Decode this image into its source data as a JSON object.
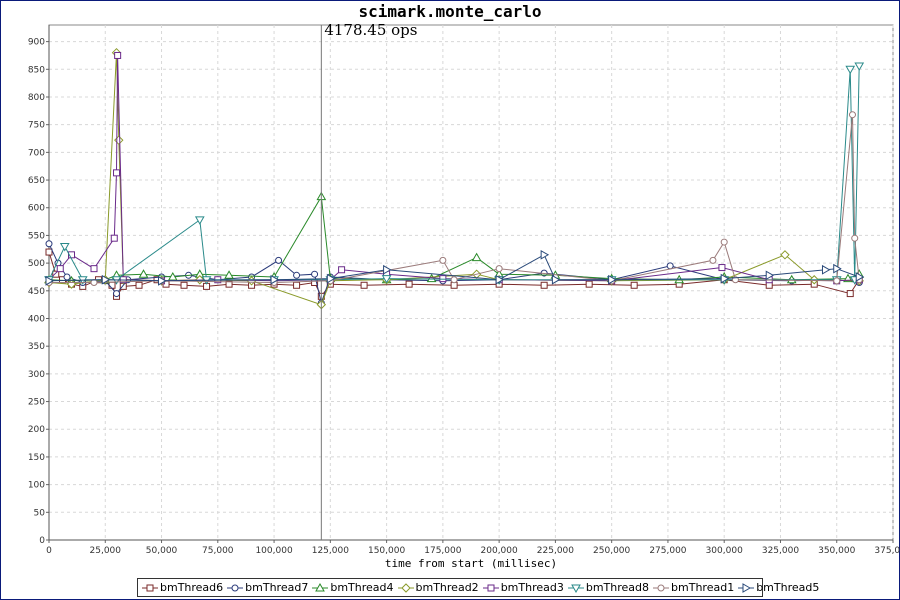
{
  "chart_data": {
    "type": "line",
    "title": "scimark.monte_carlo",
    "xlabel": "time from start (millisec)",
    "ylabel": "",
    "xlim": [
      0,
      375000
    ],
    "ylim": [
      0,
      930
    ],
    "x_ticks": [
      "0",
      "25,000",
      "50,000",
      "75,000",
      "100,000",
      "125,000",
      "150,000",
      "175,000",
      "200,000",
      "225,000",
      "250,000",
      "275,000",
      "300,000",
      "325,000",
      "350,000",
      "375,000"
    ],
    "y_ticks": [
      "0",
      "50",
      "100",
      "150",
      "200",
      "250",
      "300",
      "350",
      "400",
      "450",
      "500",
      "550",
      "600",
      "650",
      "700",
      "750",
      "800",
      "850",
      "900"
    ],
    "grid": true,
    "legend_position": "bottom",
    "annotation": {
      "text": "4178.45 ops",
      "x": 121000
    },
    "series": [
      {
        "name": "bmThread6",
        "color": "#7a2a2a",
        "marker": "square",
        "points": [
          [
            0,
            520
          ],
          [
            3000,
            480
          ],
          [
            6000,
            470
          ],
          [
            10000,
            462
          ],
          [
            15000,
            458
          ],
          [
            22000,
            470
          ],
          [
            28000,
            460
          ],
          [
            30000,
            440
          ],
          [
            33000,
            458
          ],
          [
            40000,
            460
          ],
          [
            48000,
            470
          ],
          [
            52000,
            462
          ],
          [
            60000,
            460
          ],
          [
            70000,
            458
          ],
          [
            80000,
            462
          ],
          [
            90000,
            460
          ],
          [
            100000,
            462
          ],
          [
            110000,
            460
          ],
          [
            118000,
            465
          ],
          [
            121000,
            440
          ],
          [
            125000,
            462
          ],
          [
            140000,
            460
          ],
          [
            160000,
            462
          ],
          [
            180000,
            460
          ],
          [
            200000,
            462
          ],
          [
            220000,
            460
          ],
          [
            240000,
            462
          ],
          [
            260000,
            460
          ],
          [
            280000,
            462
          ],
          [
            300000,
            470
          ],
          [
            320000,
            460
          ],
          [
            340000,
            462
          ],
          [
            356000,
            445
          ],
          [
            360000,
            470
          ]
        ]
      },
      {
        "name": "bmThread7",
        "color": "#2a3a7a",
        "marker": "circle",
        "points": [
          [
            0,
            535
          ],
          [
            4000,
            500
          ],
          [
            8000,
            475
          ],
          [
            15000,
            465
          ],
          [
            25000,
            468
          ],
          [
            30000,
            445
          ],
          [
            35000,
            470
          ],
          [
            50000,
            475
          ],
          [
            62000,
            478
          ],
          [
            75000,
            470
          ],
          [
            90000,
            475
          ],
          [
            102000,
            505
          ],
          [
            110000,
            478
          ],
          [
            118000,
            480
          ],
          [
            121000,
            428
          ],
          [
            125000,
            475
          ],
          [
            150000,
            470
          ],
          [
            175000,
            468
          ],
          [
            200000,
            470
          ],
          [
            220000,
            482
          ],
          [
            250000,
            470
          ],
          [
            276000,
            495
          ],
          [
            300000,
            470
          ],
          [
            330000,
            468
          ],
          [
            350000,
            470
          ],
          [
            360000,
            465
          ]
        ]
      },
      {
        "name": "bmThread4",
        "color": "#2a8a2a",
        "marker": "triangle-up",
        "points": [
          [
            0,
            470
          ],
          [
            10000,
            468
          ],
          [
            25000,
            470
          ],
          [
            30000,
            478
          ],
          [
            42000,
            480
          ],
          [
            55000,
            475
          ],
          [
            67000,
            480
          ],
          [
            80000,
            478
          ],
          [
            100000,
            475
          ],
          [
            121000,
            620
          ],
          [
            125000,
            472
          ],
          [
            150000,
            470
          ],
          [
            170000,
            472
          ],
          [
            190000,
            510
          ],
          [
            200000,
            480
          ],
          [
            225000,
            478
          ],
          [
            250000,
            472
          ],
          [
            280000,
            470
          ],
          [
            300000,
            475
          ],
          [
            330000,
            470
          ],
          [
            355000,
            472
          ],
          [
            360000,
            480
          ]
        ]
      },
      {
        "name": "bmThread2",
        "color": "#8a9a2a",
        "marker": "diamond",
        "points": [
          [
            0,
            465
          ],
          [
            10000,
            462
          ],
          [
            25000,
            470
          ],
          [
            30000,
            880
          ],
          [
            31000,
            722
          ],
          [
            33000,
            470
          ],
          [
            50000,
            468
          ],
          [
            67000,
            470
          ],
          [
            90000,
            468
          ],
          [
            121000,
            425
          ],
          [
            125000,
            468
          ],
          [
            150000,
            470
          ],
          [
            190000,
            480
          ],
          [
            200000,
            470
          ],
          [
            250000,
            468
          ],
          [
            300000,
            470
          ],
          [
            327000,
            515
          ],
          [
            340000,
            470
          ],
          [
            360000,
            468
          ]
        ]
      },
      {
        "name": "bmThread3",
        "color": "#6a2a8a",
        "marker": "square",
        "points": [
          [
            0,
            470
          ],
          [
            5000,
            490
          ],
          [
            10000,
            515
          ],
          [
            20000,
            490
          ],
          [
            29000,
            545
          ],
          [
            30000,
            663
          ],
          [
            30500,
            875
          ],
          [
            33000,
            470
          ],
          [
            50000,
            468
          ],
          [
            75000,
            470
          ],
          [
            100000,
            468
          ],
          [
            125000,
            470
          ],
          [
            130000,
            488
          ],
          [
            150000,
            480
          ],
          [
            175000,
            472
          ],
          [
            200000,
            470
          ],
          [
            250000,
            468
          ],
          [
            299000,
            492
          ],
          [
            320000,
            470
          ],
          [
            350000,
            468
          ],
          [
            360000,
            470
          ]
        ]
      },
      {
        "name": "bmThread8",
        "color": "#2a8a8a",
        "marker": "triangle-down",
        "points": [
          [
            0,
            470
          ],
          [
            7000,
            530
          ],
          [
            15000,
            470
          ],
          [
            30000,
            470
          ],
          [
            67000,
            578
          ],
          [
            70000,
            470
          ],
          [
            100000,
            470
          ],
          [
            125000,
            470
          ],
          [
            150000,
            472
          ],
          [
            200000,
            470
          ],
          [
            250000,
            470
          ],
          [
            300000,
            470
          ],
          [
            350000,
            470
          ],
          [
            356000,
            850
          ],
          [
            358000,
            470
          ],
          [
            360000,
            856
          ]
        ]
      },
      {
        "name": "bmThread1",
        "color": "#9a7a7a",
        "marker": "circle",
        "points": [
          [
            0,
            465
          ],
          [
            20000,
            465
          ],
          [
            50000,
            468
          ],
          [
            100000,
            465
          ],
          [
            125000,
            468
          ],
          [
            175000,
            505
          ],
          [
            180000,
            470
          ],
          [
            200000,
            490
          ],
          [
            250000,
            468
          ],
          [
            295000,
            505
          ],
          [
            300000,
            538
          ],
          [
            305000,
            470
          ],
          [
            350000,
            468
          ],
          [
            357000,
            768
          ],
          [
            358000,
            545
          ],
          [
            360000,
            470
          ]
        ]
      },
      {
        "name": "bmThread5",
        "color": "#2a4a7a",
        "marker": "triangle-right",
        "points": [
          [
            0,
            468
          ],
          [
            25000,
            470
          ],
          [
            50000,
            468
          ],
          [
            100000,
            470
          ],
          [
            125000,
            472
          ],
          [
            150000,
            488
          ],
          [
            200000,
            470
          ],
          [
            220000,
            515
          ],
          [
            225000,
            470
          ],
          [
            250000,
            470
          ],
          [
            300000,
            472
          ],
          [
            320000,
            478
          ],
          [
            345000,
            488
          ],
          [
            350000,
            490
          ],
          [
            360000,
            475
          ]
        ]
      }
    ]
  }
}
